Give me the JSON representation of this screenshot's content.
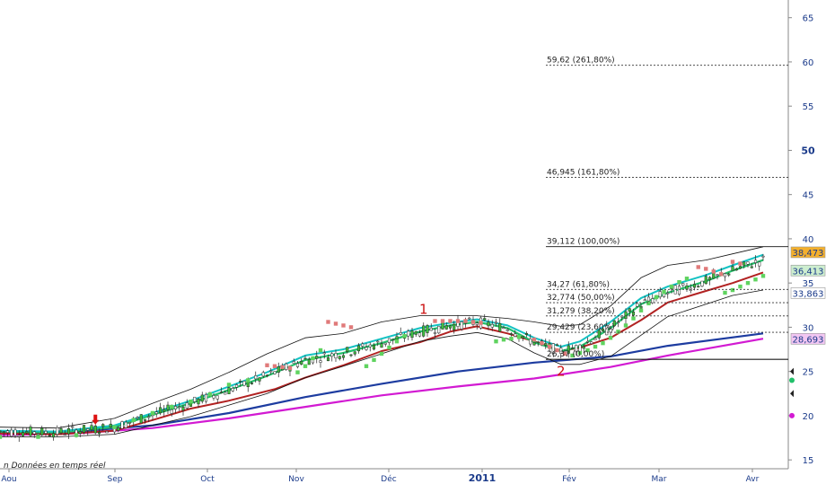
{
  "chart_data": {
    "type": "line",
    "subtype": "candlestick-with-overlays",
    "footer_text": "n  Données en temps réel",
    "x_labels": [
      "Aou",
      "Sep",
      "Oct",
      "Nov",
      "Déc",
      "2011",
      "Fév",
      "Mar",
      "Avr"
    ],
    "y_ticks": [
      "15",
      "20",
      "25",
      "30",
      "35",
      "40",
      "45",
      "50",
      "55",
      "60",
      "65"
    ],
    "ylim": [
      14,
      67
    ],
    "fib_levels": [
      {
        "value": 26.37,
        "label": "26,37 (0,00%)"
      },
      {
        "value": 29.429,
        "label": "29,429 (23,60%)"
      },
      {
        "value": 31.279,
        "label": "31,279 (38,20%)"
      },
      {
        "value": 32.774,
        "label": "32,774 (50,00%)"
      },
      {
        "value": 34.27,
        "label": "34,27 (61,80%)"
      },
      {
        "value": 39.112,
        "label": "39,112 (100,00%)"
      },
      {
        "value": 46.945,
        "label": "46,945 (161,80%)"
      },
      {
        "value": 59.62,
        "label": "59,62 (261,80%)"
      }
    ],
    "wave_labels": [
      {
        "text": "1",
        "x": 111,
        "y": 31.5
      },
      {
        "text": "2",
        "x": 147,
        "y": 24.5
      }
    ],
    "price_badges": [
      {
        "value": "38,473",
        "color": "#f4b02c"
      },
      {
        "value": "36,413",
        "color": "#cdeecf"
      },
      {
        "value": "33,863",
        "color": "#ffffff"
      },
      {
        "value": "28,693",
        "color": "#f2c6f2"
      }
    ],
    "series": [
      {
        "kind": "ma-long",
        "color": "#1d3ca0",
        "points": [
          [
            0,
            18.0
          ],
          [
            20,
            18.2
          ],
          [
            40,
            18.9
          ],
          [
            60,
            20.3
          ],
          [
            80,
            22.1
          ],
          [
            100,
            23.6
          ],
          [
            120,
            25.0
          ],
          [
            140,
            26.0
          ],
          [
            160,
            26.7
          ],
          [
            175,
            27.9
          ],
          [
            200,
            29.3
          ]
        ]
      },
      {
        "kind": "ma-very-long",
        "color": "#d21ad2",
        "points": [
          [
            0,
            17.8
          ],
          [
            20,
            18.0
          ],
          [
            40,
            18.6
          ],
          [
            60,
            19.7
          ],
          [
            80,
            21.0
          ],
          [
            100,
            22.3
          ],
          [
            120,
            23.3
          ],
          [
            140,
            24.2
          ],
          [
            160,
            25.5
          ],
          [
            175,
            26.8
          ],
          [
            200,
            28.7
          ]
        ]
      },
      {
        "kind": "ma-mid",
        "color": "#b22222",
        "points": [
          [
            0,
            18.0
          ],
          [
            15,
            17.9
          ],
          [
            30,
            18.3
          ],
          [
            40,
            19.5
          ],
          [
            50,
            20.8
          ],
          [
            60,
            21.7
          ],
          [
            72,
            23.0
          ],
          [
            80,
            24.3
          ],
          [
            90,
            25.7
          ],
          [
            100,
            27.3
          ],
          [
            110,
            28.3
          ],
          [
            118,
            29.5
          ],
          [
            125,
            30.1
          ],
          [
            133,
            29.3
          ],
          [
            140,
            28.4
          ],
          [
            147,
            27.3
          ],
          [
            152,
            27.7
          ],
          [
            160,
            28.8
          ],
          [
            168,
            30.8
          ],
          [
            175,
            32.8
          ],
          [
            185,
            34.1
          ],
          [
            192,
            35.0
          ],
          [
            200,
            36.2
          ]
        ]
      },
      {
        "kind": "ma-fast-1",
        "color": "#22c06a",
        "points": [
          [
            0,
            18.2
          ],
          [
            15,
            18.1
          ],
          [
            30,
            18.7
          ],
          [
            40,
            20.1
          ],
          [
            50,
            21.4
          ],
          [
            60,
            22.9
          ],
          [
            70,
            24.5
          ],
          [
            80,
            26.3
          ],
          [
            90,
            27.1
          ],
          [
            100,
            28.2
          ],
          [
            110,
            29.5
          ],
          [
            118,
            30.2
          ],
          [
            125,
            30.6
          ],
          [
            133,
            29.9
          ],
          [
            140,
            28.3
          ],
          [
            147,
            27.3
          ],
          [
            152,
            27.8
          ],
          [
            160,
            29.9
          ],
          [
            168,
            32.6
          ],
          [
            175,
            33.9
          ],
          [
            185,
            35.2
          ],
          [
            192,
            36.4
          ],
          [
            200,
            37.6
          ]
        ]
      },
      {
        "kind": "ma-fast-2",
        "color": "#13c2c2",
        "points": [
          [
            0,
            18.3
          ],
          [
            15,
            18.2
          ],
          [
            30,
            18.9
          ],
          [
            40,
            20.3
          ],
          [
            50,
            21.7
          ],
          [
            60,
            23.3
          ],
          [
            70,
            24.9
          ],
          [
            80,
            26.8
          ],
          [
            90,
            27.5
          ],
          [
            100,
            28.7
          ],
          [
            110,
            29.9
          ],
          [
            118,
            30.5
          ],
          [
            125,
            30.9
          ],
          [
            133,
            30.2
          ],
          [
            140,
            28.8
          ],
          [
            147,
            27.8
          ],
          [
            152,
            28.4
          ],
          [
            160,
            30.6
          ],
          [
            168,
            33.3
          ],
          [
            175,
            34.6
          ],
          [
            185,
            35.9
          ],
          [
            192,
            37.0
          ],
          [
            200,
            38.2
          ]
        ]
      },
      {
        "kind": "bollinger-upper",
        "color": "#111111",
        "points": [
          [
            0,
            18.7
          ],
          [
            15,
            18.6
          ],
          [
            30,
            19.7
          ],
          [
            40,
            21.4
          ],
          [
            50,
            23.0
          ],
          [
            60,
            24.9
          ],
          [
            70,
            27.0
          ],
          [
            80,
            28.8
          ],
          [
            90,
            29.3
          ],
          [
            100,
            30.6
          ],
          [
            110,
            31.3
          ],
          [
            118,
            31.3
          ],
          [
            125,
            31.3
          ],
          [
            133,
            31.0
          ],
          [
            140,
            30.6
          ],
          [
            147,
            30.1
          ],
          [
            152,
            30.3
          ],
          [
            160,
            32.4
          ],
          [
            168,
            35.6
          ],
          [
            175,
            37.0
          ],
          [
            185,
            37.6
          ],
          [
            192,
            38.3
          ],
          [
            200,
            39.1
          ]
        ]
      },
      {
        "kind": "bollinger-lower",
        "color": "#111111",
        "points": [
          [
            0,
            17.6
          ],
          [
            15,
            17.6
          ],
          [
            30,
            17.9
          ],
          [
            40,
            18.9
          ],
          [
            50,
            19.9
          ],
          [
            60,
            21.2
          ],
          [
            70,
            22.5
          ],
          [
            80,
            24.3
          ],
          [
            90,
            25.6
          ],
          [
            100,
            27.0
          ],
          [
            110,
            28.4
          ],
          [
            118,
            29.0
          ],
          [
            125,
            29.4
          ],
          [
            133,
            28.7
          ],
          [
            140,
            27.1
          ],
          [
            147,
            25.8
          ],
          [
            152,
            25.8
          ],
          [
            160,
            26.7
          ],
          [
            168,
            29.1
          ],
          [
            175,
            31.2
          ],
          [
            185,
            32.6
          ],
          [
            192,
            33.6
          ],
          [
            200,
            34.2
          ]
        ]
      }
    ],
    "sar_red": [
      [
        70,
        25.7
      ],
      [
        72,
        25.6
      ],
      [
        74,
        25.5
      ],
      [
        76,
        25.4
      ],
      [
        86,
        30.6
      ],
      [
        88,
        30.4
      ],
      [
        90,
        30.2
      ],
      [
        92,
        30.0
      ],
      [
        114,
        30.7
      ],
      [
        116,
        30.7
      ],
      [
        118,
        30.7
      ],
      [
        120,
        30.7
      ],
      [
        122,
        30.7
      ],
      [
        124,
        30.6
      ],
      [
        126,
        30.5
      ],
      [
        140,
        28.6
      ],
      [
        142,
        28.2
      ],
      [
        144,
        27.8
      ],
      [
        146,
        27.4
      ],
      [
        148,
        27.0
      ],
      [
        183,
        36.8
      ],
      [
        185,
        36.6
      ],
      [
        187,
        36.3
      ],
      [
        189,
        36.0
      ],
      [
        192,
        37.4
      ],
      [
        194,
        37.2
      ]
    ],
    "sar_green": [
      [
        0,
        17.6
      ],
      [
        10,
        17.6
      ],
      [
        20,
        17.8
      ],
      [
        30,
        18.7
      ],
      [
        35,
        19.5
      ],
      [
        40,
        20.3
      ],
      [
        45,
        21.0
      ],
      [
        50,
        21.6
      ],
      [
        55,
        22.4
      ],
      [
        60,
        23.5
      ],
      [
        65,
        24.0
      ],
      [
        78,
        24.9
      ],
      [
        80,
        25.6
      ],
      [
        82,
        26.5
      ],
      [
        84,
        27.4
      ],
      [
        96,
        25.6
      ],
      [
        98,
        26.3
      ],
      [
        100,
        27.0
      ],
      [
        102,
        27.7
      ],
      [
        104,
        28.4
      ],
      [
        106,
        29.0
      ],
      [
        130,
        28.4
      ],
      [
        132,
        28.6
      ],
      [
        134,
        28.7
      ],
      [
        136,
        28.9
      ],
      [
        150,
        26.8
      ],
      [
        152,
        27.1
      ],
      [
        154,
        27.4
      ],
      [
        156,
        27.8
      ],
      [
        158,
        28.2
      ],
      [
        160,
        28.8
      ],
      [
        162,
        29.5
      ],
      [
        164,
        30.2
      ],
      [
        166,
        31.0
      ],
      [
        168,
        31.9
      ],
      [
        170,
        32.7
      ],
      [
        172,
        33.4
      ],
      [
        174,
        34.0
      ],
      [
        176,
        34.6
      ],
      [
        178,
        35.1
      ],
      [
        180,
        35.5
      ],
      [
        190,
        33.9
      ],
      [
        192,
        34.2
      ],
      [
        194,
        34.6
      ],
      [
        196,
        35.0
      ],
      [
        198,
        35.4
      ],
      [
        200,
        35.8
      ]
    ]
  }
}
